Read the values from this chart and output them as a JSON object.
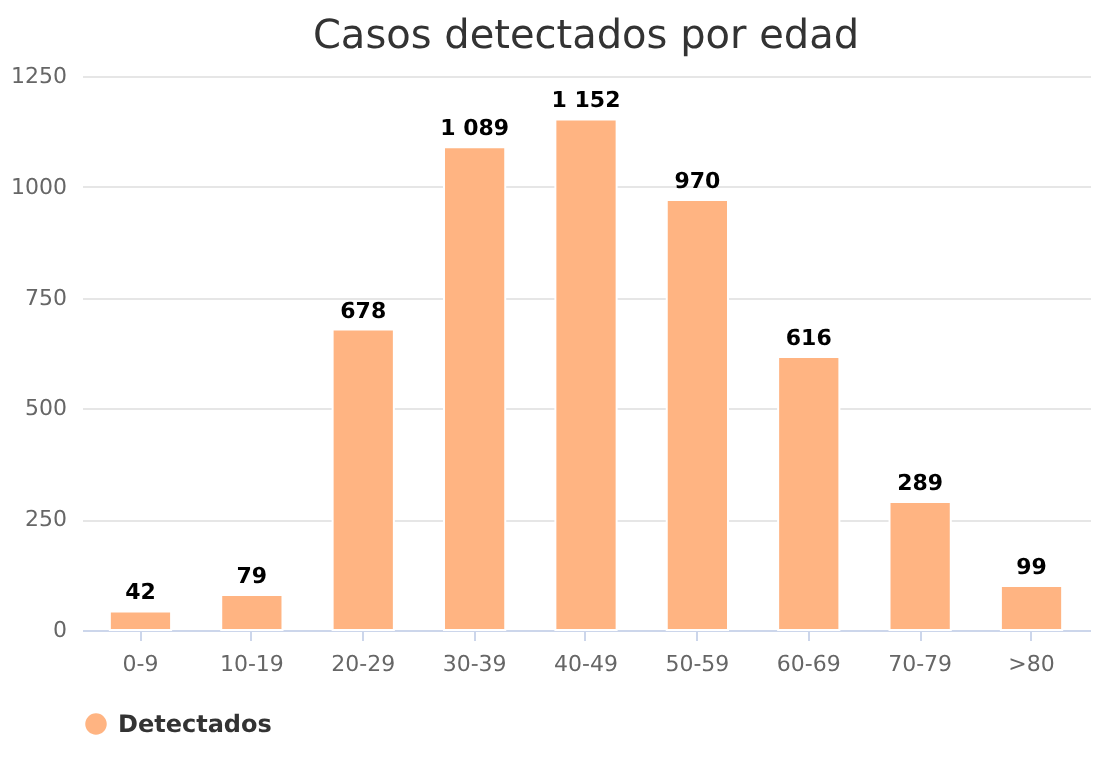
{
  "chart_data": {
    "type": "bar",
    "title": "Casos detectados por edad",
    "categories": [
      "0-9",
      "10-19",
      "20-29",
      "30-39",
      "40-49",
      "50-59",
      "60-69",
      "70-79",
      ">80"
    ],
    "series": [
      {
        "name": "Detectados",
        "color": "#ffb482",
        "values": [
          42,
          79,
          678,
          1089,
          1152,
          970,
          616,
          289,
          99
        ],
        "value_labels": [
          "42",
          "79",
          "678",
          "1 089",
          "1 152",
          "970",
          "616",
          "289",
          "99"
        ]
      }
    ],
    "ylim": [
      0,
      1250
    ],
    "yticks": [
      0,
      250,
      500,
      750,
      1000,
      1250
    ],
    "grid": "y",
    "legend": "bottom"
  }
}
